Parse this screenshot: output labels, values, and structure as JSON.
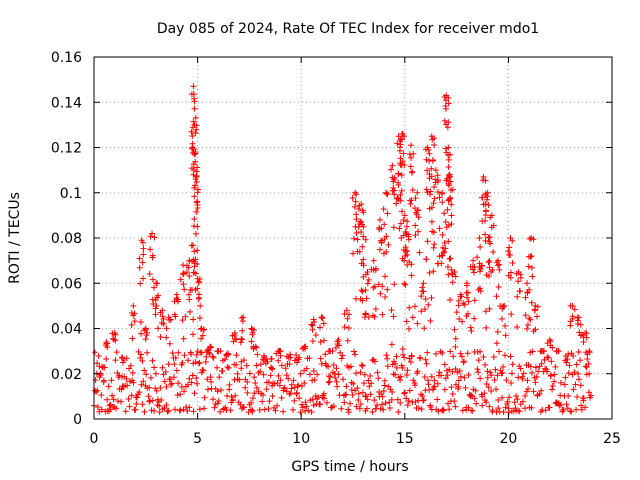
{
  "chart_data": {
    "type": "scatter",
    "title": "Day 085 of 2024, Rate Of TEC Index for receiver mdo1",
    "xlabel": "GPS time / hours",
    "ylabel": "ROTI / TECUs",
    "xlim": [
      0,
      25
    ],
    "ylim": [
      0,
      0.16
    ],
    "xticks": [
      0,
      5,
      10,
      15,
      20,
      25
    ],
    "xtick_labels": [
      "0",
      "5",
      "10",
      "15",
      "20",
      "25"
    ],
    "yticks": [
      0,
      0.02,
      0.04,
      0.06,
      0.08,
      0.1,
      0.12,
      0.14,
      0.16
    ],
    "ytick_labels": [
      "0",
      "0.02",
      "0.04",
      "0.06",
      "0.08",
      "0.1",
      "0.12",
      "0.14",
      "0.16"
    ],
    "grid": true,
    "marker": "plus",
    "color": "#ff0000",
    "series": [
      {
        "name": "ROTI",
        "x": [
          0.1,
          0.3,
          0.6,
          1.0,
          1.4,
          1.9,
          2.3,
          2.5,
          2.8,
          3.0,
          3.3,
          3.6,
          4.0,
          4.3,
          4.6,
          4.8,
          4.85,
          4.9,
          4.95,
          5.0,
          5.2,
          5.6,
          6.0,
          6.4,
          6.8,
          7.2,
          7.6,
          7.8,
          8.2,
          8.6,
          9.0,
          9.4,
          9.8,
          10.2,
          10.6,
          11.0,
          11.4,
          11.8,
          12.2,
          12.6,
          12.9,
          13.0,
          13.2,
          13.5,
          13.8,
          14.1,
          14.4,
          14.7,
          14.9,
          15.0,
          15.1,
          15.3,
          15.6,
          15.9,
          16.1,
          16.3,
          16.5,
          16.8,
          17.0,
          17.1,
          17.2,
          17.4,
          17.7,
          18.0,
          18.3,
          18.6,
          18.8,
          19.0,
          19.2,
          19.5,
          19.8,
          20.1,
          20.5,
          20.9,
          21.1,
          21.3,
          21.6,
          22.0,
          22.4,
          22.8,
          23.1,
          23.4,
          23.7,
          23.9
        ],
        "y": [
          0.012,
          0.02,
          0.034,
          0.038,
          0.025,
          0.05,
          0.079,
          0.04,
          0.082,
          0.06,
          0.048,
          0.045,
          0.055,
          0.068,
          0.07,
          0.147,
          0.13,
          0.118,
          0.107,
          0.062,
          0.04,
          0.032,
          0.03,
          0.028,
          0.038,
          0.045,
          0.04,
          0.032,
          0.026,
          0.022,
          0.03,
          0.027,
          0.025,
          0.032,
          0.044,
          0.045,
          0.03,
          0.035,
          0.048,
          0.1,
          0.095,
          0.085,
          0.065,
          0.07,
          0.088,
          0.1,
          0.112,
          0.125,
          0.126,
          0.09,
          0.085,
          0.121,
          0.1,
          0.06,
          0.12,
          0.125,
          0.11,
          0.1,
          0.143,
          0.12,
          0.105,
          0.065,
          0.055,
          0.06,
          0.07,
          0.08,
          0.107,
          0.1,
          0.09,
          0.07,
          0.05,
          0.08,
          0.065,
          0.06,
          0.08,
          0.05,
          0.03,
          0.035,
          0.03,
          0.025,
          0.05,
          0.045,
          0.038,
          0.02
        ]
      }
    ],
    "baseline_range": [
      0.003,
      0.03
    ],
    "baseline_sample_count": 720
  }
}
